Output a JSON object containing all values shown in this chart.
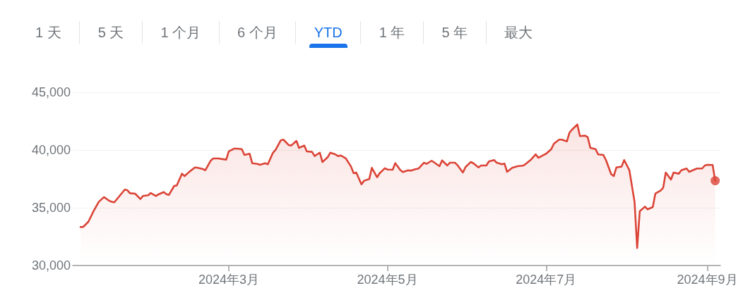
{
  "chart_data": {
    "type": "area",
    "annotations": [
      "1 天",
      "5 天",
      "1 个月",
      "6 个月",
      "YTD",
      "1 年",
      "5 年",
      "最大"
    ],
    "x": [
      "2024-01-04",
      "2024-01-05",
      "2024-01-07",
      "2024-01-09",
      "2024-01-11",
      "2024-01-13",
      "2024-01-15",
      "2024-01-16",
      "2024-01-17",
      "2024-01-19",
      "2024-01-21",
      "2024-01-22",
      "2024-01-23",
      "2024-01-25",
      "2024-01-27",
      "2024-01-28",
      "2024-01-30",
      "2024-01-31",
      "2024-02-02",
      "2024-02-03",
      "2024-02-05",
      "2024-02-06",
      "2024-02-07",
      "2024-02-09",
      "2024-02-10",
      "2024-02-12",
      "2024-02-13",
      "2024-02-15",
      "2024-02-17",
      "2024-02-18",
      "2024-02-20",
      "2024-02-21",
      "2024-02-23",
      "2024-02-24",
      "2024-02-26",
      "2024-02-27",
      "2024-02-29",
      "2024-03-01",
      "2024-03-03",
      "2024-03-04",
      "2024-03-06",
      "2024-03-07",
      "2024-03-09",
      "2024-03-10",
      "2024-03-12",
      "2024-03-13",
      "2024-03-15",
      "2024-03-16",
      "2024-03-18",
      "2024-03-19",
      "2024-03-21",
      "2024-03-22",
      "2024-03-24",
      "2024-03-25",
      "2024-03-27",
      "2024-03-28",
      "2024-03-30",
      "2024-03-31",
      "2024-04-02",
      "2024-04-03",
      "2024-04-05",
      "2024-04-06",
      "2024-04-08",
      "2024-04-09",
      "2024-04-11",
      "2024-04-12",
      "2024-04-13",
      "2024-04-15",
      "2024-04-17",
      "2024-04-18",
      "2024-04-19",
      "2024-04-21",
      "2024-04-22",
      "2024-04-24",
      "2024-04-25",
      "2024-04-27",
      "2024-04-28",
      "2024-04-30",
      "2024-05-01",
      "2024-05-03",
      "2024-05-04",
      "2024-05-06",
      "2024-05-07",
      "2024-05-09",
      "2024-05-10",
      "2024-05-12",
      "2024-05-13",
      "2024-05-15",
      "2024-05-16",
      "2024-05-18",
      "2024-05-19",
      "2024-05-21",
      "2024-05-22",
      "2024-05-24",
      "2024-05-25",
      "2024-05-27",
      "2024-05-28",
      "2024-05-30",
      "2024-05-31",
      "2024-06-02",
      "2024-06-03",
      "2024-06-05",
      "2024-06-06",
      "2024-06-08",
      "2024-06-09",
      "2024-06-11",
      "2024-06-12",
      "2024-06-14",
      "2024-06-15",
      "2024-06-16",
      "2024-06-18",
      "2024-06-20",
      "2024-06-22",
      "2024-06-23",
      "2024-06-25",
      "2024-06-27",
      "2024-06-28",
      "2024-06-30",
      "2024-07-01",
      "2024-07-03",
      "2024-07-04",
      "2024-07-06",
      "2024-07-07",
      "2024-07-09",
      "2024-07-10",
      "2024-07-11",
      "2024-07-13",
      "2024-07-14",
      "2024-07-16",
      "2024-07-17",
      "2024-07-18",
      "2024-07-20",
      "2024-07-21",
      "2024-07-23",
      "2024-07-24",
      "2024-07-26",
      "2024-07-27",
      "2024-07-28",
      "2024-07-30",
      "2024-07-31",
      "2024-08-02",
      "2024-08-04",
      "2024-08-05",
      "2024-08-06",
      "2024-08-08",
      "2024-08-09",
      "2024-08-11",
      "2024-08-12",
      "2024-08-14",
      "2024-08-15",
      "2024-08-16",
      "2024-08-18",
      "2024-08-19",
      "2024-08-21",
      "2024-08-22",
      "2024-08-24",
      "2024-08-25",
      "2024-08-27",
      "2024-08-28",
      "2024-08-30",
      "2024-08-31",
      "2024-09-01",
      "2024-09-03",
      "2024-09-04"
    ],
    "series": [
      {
        "color": "#db4437",
        "values": [
          33330,
          33340,
          33780,
          34700,
          35510,
          35920,
          35610,
          35510,
          35470,
          36020,
          36570,
          36520,
          36260,
          36220,
          35750,
          36020,
          36080,
          36280,
          36020,
          36160,
          36360,
          36180,
          36120,
          36890,
          36930,
          37950,
          37740,
          38150,
          38490,
          38460,
          38350,
          38250,
          39070,
          39270,
          39270,
          39230,
          39170,
          39880,
          40120,
          40120,
          40080,
          39570,
          39680,
          38860,
          38800,
          38720,
          38860,
          38760,
          39770,
          40020,
          40840,
          40900,
          40430,
          40390,
          40790,
          40180,
          40390,
          39880,
          39840,
          39470,
          39770,
          38960,
          39370,
          39770,
          39620,
          39470,
          39530,
          39270,
          38560,
          37990,
          38050,
          37030,
          37340,
          37480,
          38460,
          37640,
          37990,
          38420,
          38310,
          38290,
          38860,
          38250,
          38090,
          38250,
          38210,
          38350,
          38400,
          38900,
          38800,
          39070,
          38920,
          38600,
          39100,
          38660,
          38900,
          38900,
          38660,
          38050,
          38520,
          38960,
          38860,
          38490,
          38660,
          38660,
          39010,
          39130,
          38900,
          38760,
          38820,
          38110,
          38460,
          38600,
          38640,
          38760,
          39130,
          39620,
          39330,
          39570,
          39680,
          40080,
          40550,
          40900,
          40900,
          40750,
          41510,
          41770,
          42210,
          41200,
          41240,
          41100,
          40180,
          40080,
          39620,
          39570,
          39130,
          37910,
          37740,
          38490,
          38560,
          39130,
          38250,
          35510,
          31510,
          34700,
          35100,
          34860,
          35060,
          36220,
          36480,
          36730,
          38050,
          37440,
          38050,
          37950,
          38250,
          38400,
          38110,
          38310,
          38400,
          38400,
          38660,
          38720,
          38700,
          37340
        ]
      },
      {
        "type": "scatter",
        "marker": "circle",
        "color": "#db4437",
        "x": [
          "2024-09-04"
        ],
        "values": [
          37340
        ]
      }
    ],
    "xlim": [
      "2024-01-01",
      "2024-09-06"
    ],
    "xticks": [
      {
        "value": "2024-03-01",
        "label": "2024年3月"
      },
      {
        "value": "2024-05-01",
        "label": "2024年5月"
      },
      {
        "value": "2024-07-01",
        "label": "2024年7月"
      },
      {
        "value": "2024-09-01",
        "label": "2024年9月"
      }
    ],
    "ylim": [
      30000,
      45000
    ],
    "yticks": [
      {
        "value": 30000,
        "label": "30,000"
      },
      {
        "value": 35000,
        "label": "35,000"
      },
      {
        "value": 40000,
        "label": "40,000"
      },
      {
        "value": 45000,
        "label": "45,000"
      }
    ],
    "grid": "y",
    "marker": "none",
    "line_style": "solid"
  }
}
